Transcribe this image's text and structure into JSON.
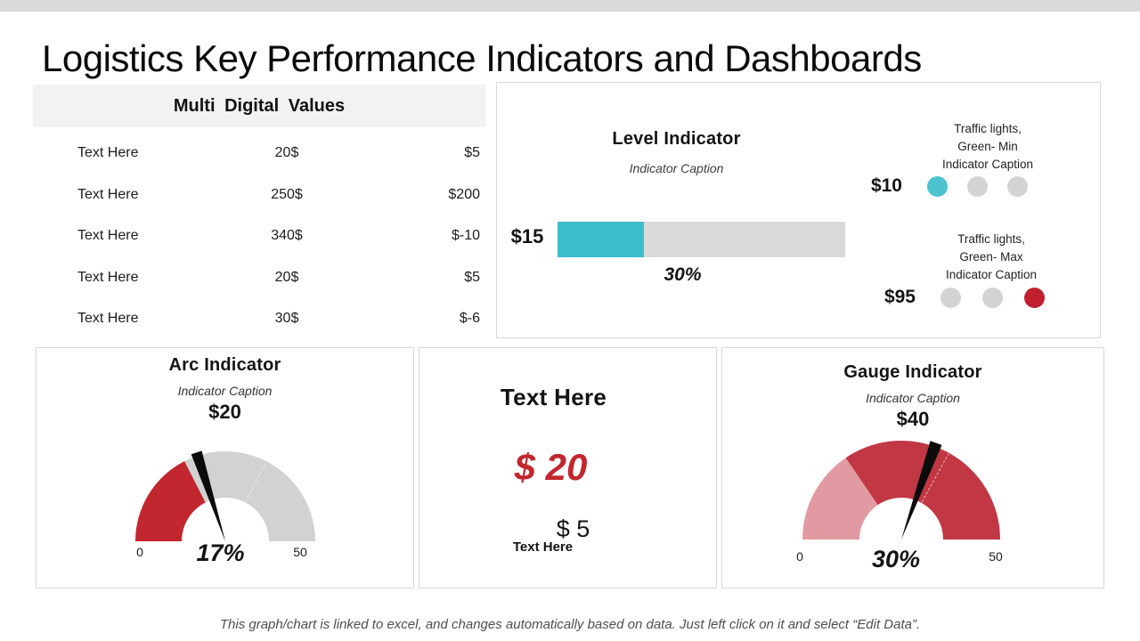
{
  "slide": {
    "title": "Logistics Key Performance Indicators and Dashboards",
    "footer": "This graph/chart is linked to excel, and changes automatically based on data. Just left click on it and select “Edit Data”."
  },
  "colors": {
    "accent_teal": "#3BBEC9",
    "accent_red": "#C2262F",
    "gauge_dark_red": "#C13743",
    "gauge_pink": "#E29AA2",
    "track_gray": "#D9D9D9",
    "gauge_gray": "#D2D2D2",
    "light_dot_gray": "#D3D3D3",
    "header_bg": "#F2F2F2"
  },
  "table": {
    "title": "Multi Digital Values",
    "rows": [
      {
        "label": "Text Here",
        "value1": "20$",
        "value2": "$5"
      },
      {
        "label": "Text Here",
        "value1": "250$",
        "value2": "$200"
      },
      {
        "label": "Text Here",
        "value1": "340$",
        "value2": "$-10"
      },
      {
        "label": "Text Here",
        "value1": "20$",
        "value2": "$5"
      },
      {
        "label": "Text Here",
        "value1": "30$",
        "value2": "$-6"
      }
    ]
  },
  "level_indicator": {
    "title": "Level Indicator",
    "caption": "Indicator Caption",
    "left_label": "$15",
    "percent": 30,
    "percent_label": "30%",
    "bar_color": "#3BBEC9",
    "traffic_min": {
      "caption_lines": [
        "Traffic lights,",
        "Green- Min",
        "Indicator Caption"
      ],
      "value": "$10",
      "lights": [
        "#4BC2CE",
        "#D3D3D3",
        "#D3D3D3"
      ]
    },
    "traffic_max": {
      "caption_lines": [
        "Traffic lights,",
        "Green- Max",
        "Indicator Caption"
      ],
      "value": "$95",
      "lights": [
        "#D3D3D3",
        "#D3D3D3",
        "#C0202E"
      ]
    }
  },
  "arc_indicator": {
    "title": "Arc Indicator",
    "caption": "Indicator Caption",
    "value": "$20",
    "percent_label": "17%",
    "min_label": "0",
    "max_label": "50",
    "gauge": {
      "segments": [
        {
          "end_pct": 35,
          "color": "#C2262F"
        },
        {
          "end_pct": 100,
          "color": "#D2D2D2"
        }
      ],
      "needle_pct": 40,
      "divider_pct": 65
    }
  },
  "kpi_panel": {
    "title": "Text Here",
    "primary_value": "$ 20",
    "primary_color": "#C2262F",
    "secondary_value": "$ 5",
    "secondary_label": "Text Here"
  },
  "gauge_indicator": {
    "title": "Gauge Indicator",
    "caption": "Indicator Caption",
    "value": "$40",
    "percent_label": "30%",
    "min_label": "0",
    "max_label": "50",
    "gauge": {
      "segments": [
        {
          "end_pct": 31,
          "color": "#E29AA2"
        },
        {
          "end_pct": 100,
          "color": "#C13743"
        }
      ],
      "needle_pct": 61,
      "divider_pct": 66
    }
  },
  "chart_data": [
    {
      "type": "table",
      "title": "Multi Digital Values",
      "columns": [
        "label",
        "value1",
        "value2"
      ],
      "rows": [
        [
          "Text Here",
          "20$",
          "$5"
        ],
        [
          "Text Here",
          "250$",
          "$200"
        ],
        [
          "Text Here",
          "340$",
          "$-10"
        ],
        [
          "Text Here",
          "20$",
          "$5"
        ],
        [
          "Text Here",
          "30$",
          "$-6"
        ]
      ]
    },
    {
      "type": "bar",
      "title": "Level Indicator",
      "subtitle": "Indicator Caption",
      "categories": [
        "$15"
      ],
      "values": [
        30
      ],
      "value_labels": [
        "30%"
      ],
      "xlim": [
        0,
        100
      ],
      "annotations": [
        {
          "label": "Traffic lights, Green- Min Indicator Caption",
          "value": "$10",
          "active_light": "teal"
        },
        {
          "label": "Traffic lights, Green- Max Indicator Caption",
          "value": "$95",
          "active_light": "red"
        }
      ]
    },
    {
      "type": "gauge",
      "title": "Arc Indicator",
      "subtitle": "Indicator Caption",
      "value_label": "$20",
      "percent": 17,
      "axis_range": [
        0,
        50
      ],
      "filled_segment_pct": 35
    },
    {
      "type": "kpi",
      "title": "Text Here",
      "primary": "$ 20",
      "secondary": "$ 5",
      "secondary_label": "Text Here"
    },
    {
      "type": "gauge",
      "title": "Gauge Indicator",
      "subtitle": "Indicator Caption",
      "value_label": "$40",
      "percent": 30,
      "axis_range": [
        0,
        50
      ],
      "filled_segment_pct": 31
    }
  ]
}
